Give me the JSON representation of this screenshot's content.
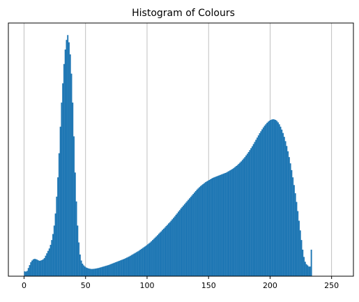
{
  "chart_data": {
    "type": "bar",
    "title": "Histogram of Colours",
    "xlabel": "",
    "ylabel": "",
    "xlim": [
      -12.75,
      267.75
    ],
    "xticks": [
      0,
      50,
      100,
      150,
      200,
      250
    ],
    "grid": "vertical",
    "y_axis_visible": false,
    "bar_color": "#1f77b4",
    "series": [
      {
        "bins_start": 0,
        "bin_width": 1,
        "values": [
          2.0,
          1.9,
          2.2,
          3.4,
          4.6,
          5.8,
          6.5,
          7.0,
          7.2,
          7.1,
          6.9,
          6.6,
          6.4,
          6.5,
          6.7,
          7.0,
          7.5,
          8.5,
          9.5,
          10.5,
          11.5,
          13.0,
          15.0,
          17.5,
          21.0,
          26.0,
          33.0,
          41.0,
          51.0,
          62.0,
          72.0,
          80.0,
          88.0,
          94.0,
          98.0,
          100.0,
          97.0,
          92.0,
          84.0,
          72.0,
          58.0,
          43.0,
          31.0,
          21.0,
          14.0,
          9.0,
          6.5,
          5.2,
          4.5,
          4.0,
          3.6,
          3.4,
          3.2,
          3.1,
          3.0,
          3.0,
          3.05,
          3.1,
          3.2,
          3.3,
          3.4,
          3.55,
          3.7,
          3.85,
          4.0,
          4.15,
          4.3,
          4.45,
          4.6,
          4.8,
          5.0,
          5.2,
          5.4,
          5.6,
          5.8,
          6.0,
          6.2,
          6.4,
          6.6,
          6.8,
          7.0,
          7.2,
          7.45,
          7.7,
          7.95,
          8.2,
          8.5,
          8.8,
          9.1,
          9.4,
          9.7,
          10.0,
          10.3,
          10.6,
          11.0,
          11.35,
          11.7,
          12.05,
          12.4,
          12.8,
          13.2,
          13.6,
          14.0,
          14.5,
          15.0,
          15.5,
          16.0,
          16.5,
          17.0,
          17.6,
          18.1,
          18.6,
          19.2,
          19.7,
          20.2,
          20.8,
          21.3,
          21.9,
          22.4,
          23.0,
          23.6,
          24.2,
          24.8,
          25.5,
          26.1,
          26.8,
          27.4,
          28.1,
          28.7,
          29.3,
          29.9,
          30.5,
          31.1,
          31.7,
          32.3,
          32.9,
          33.5,
          34.1,
          34.7,
          35.3,
          35.9,
          36.4,
          36.9,
          37.4,
          37.8,
          38.2,
          38.6,
          39.0,
          39.3,
          39.6,
          39.9,
          40.2,
          40.5,
          40.8,
          41.0,
          41.2,
          41.4,
          41.6,
          41.8,
          42.0,
          42.2,
          42.4,
          42.6,
          42.8,
          43.0,
          43.3,
          43.6,
          43.9,
          44.2,
          44.5,
          44.9,
          45.3,
          45.7,
          46.1,
          46.6,
          47.1,
          47.6,
          48.2,
          48.8,
          49.4,
          50.1,
          50.8,
          51.5,
          52.3,
          53.1,
          53.9,
          54.8,
          55.7,
          56.6,
          57.5,
          58.4,
          59.3,
          60.1,
          60.9,
          61.7,
          62.4,
          63.0,
          63.6,
          64.1,
          64.5,
          64.8,
          65.0,
          65.1,
          65.0,
          64.8,
          64.4,
          63.8,
          63.0,
          62.0,
          60.8,
          59.4,
          57.8,
          56.0,
          54.0,
          51.8,
          49.4,
          46.8,
          44.0,
          41.0,
          37.8,
          34.4,
          30.8,
          27.0,
          23.0,
          19.0,
          15.0,
          11.0,
          8.0,
          6.0,
          5.0,
          4.5,
          4.0,
          4.0,
          11.0
        ]
      }
    ],
    "ylim": [
      0,
      105
    ]
  }
}
